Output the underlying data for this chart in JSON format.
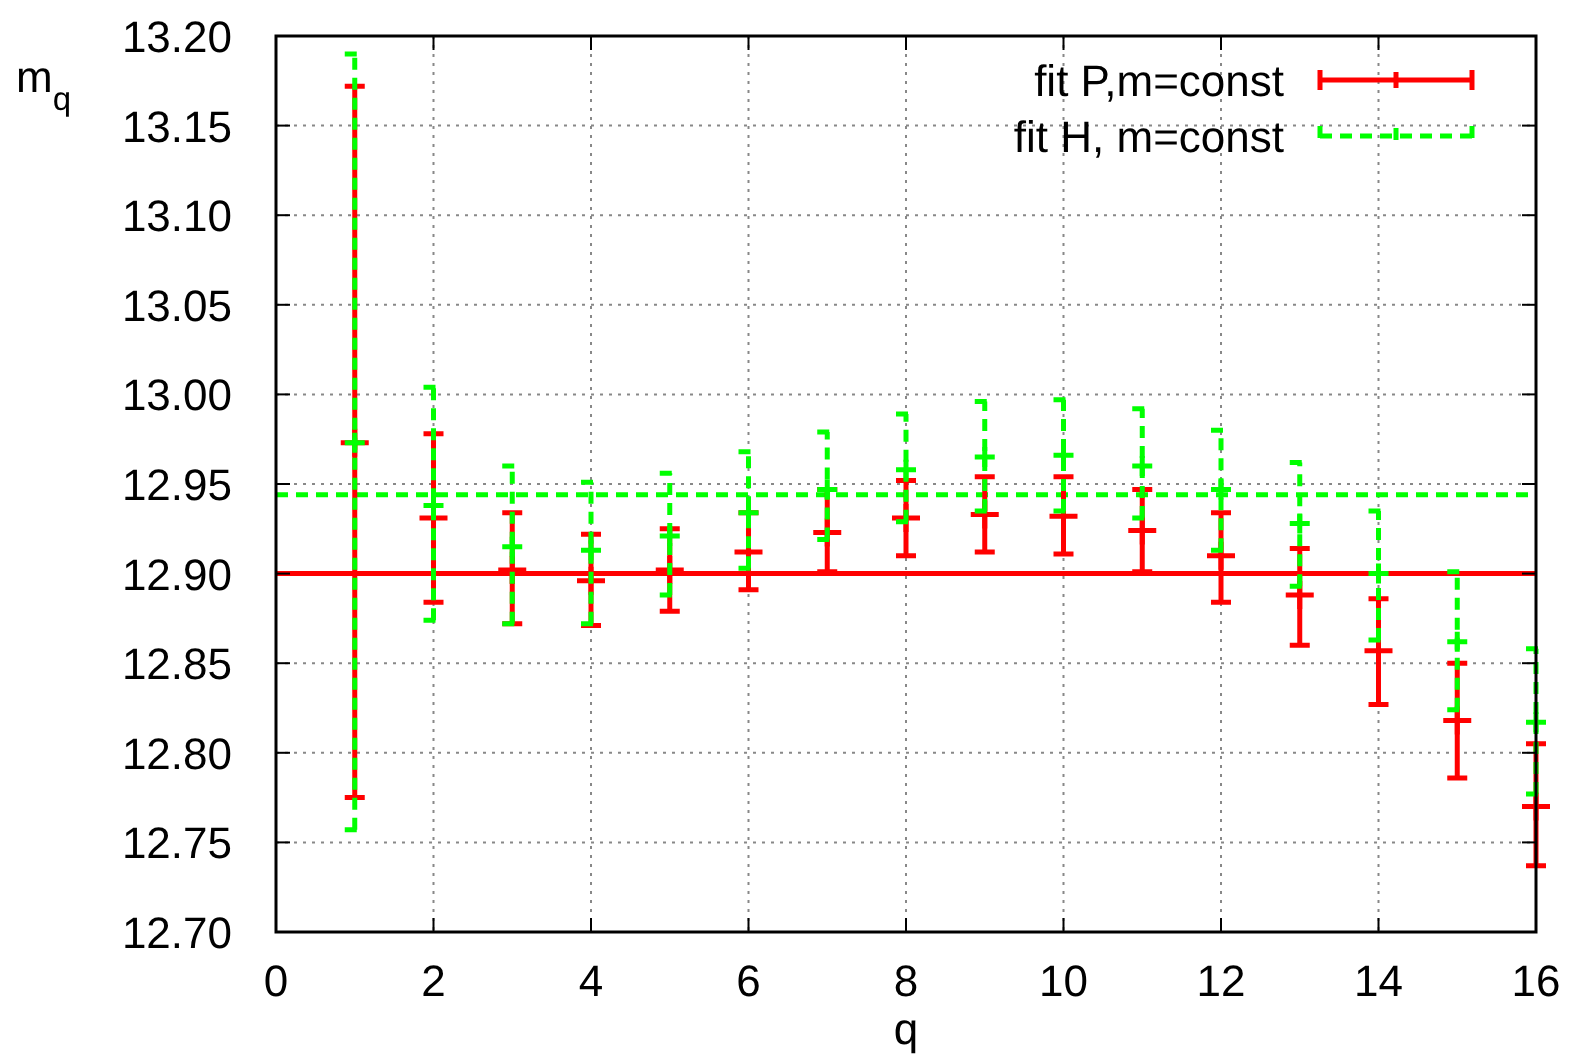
{
  "chart_data": {
    "type": "scatter",
    "xlabel": "q",
    "ylabel": "m$_{q}$",
    "x": [
      1,
      2,
      3,
      4,
      5,
      6,
      7,
      8,
      9,
      10,
      11,
      12,
      13,
      14,
      15,
      16
    ],
    "xlim": [
      0,
      16
    ],
    "xticks": [
      0,
      2,
      4,
      6,
      8,
      10,
      12,
      14,
      16
    ],
    "ylim": [
      12.7,
      13.2
    ],
    "yticks": [
      {
        "value": 12.7,
        "label": "12.70"
      },
      {
        "value": 12.75,
        "label": "12.75"
      },
      {
        "value": 12.8,
        "label": "12.80"
      },
      {
        "value": 12.85,
        "label": "12.85"
      },
      {
        "value": 12.9,
        "label": "12.90"
      },
      {
        "value": 12.95,
        "label": "12.95"
      },
      {
        "value": 13.0,
        "label": "13.00"
      },
      {
        "value": 13.05,
        "label": "13.05"
      },
      {
        "value": 13.1,
        "label": "13.10"
      },
      {
        "value": 13.15,
        "label": "13.15"
      },
      {
        "value": 13.2,
        "label": "13.20"
      }
    ],
    "grid": true,
    "legend": "top right",
    "marker": "cross",
    "series": [
      {
        "name": "fit P,m=const",
        "color": "#ff0000",
        "line_style": "solid",
        "values": [
          12.973,
          12.931,
          12.902,
          12.896,
          12.902,
          12.912,
          12.923,
          12.931,
          12.933,
          12.932,
          12.924,
          12.91,
          12.888,
          12.857,
          12.818,
          12.77
        ],
        "errors": [
          [
            12.775,
            13.172
          ],
          [
            12.884,
            12.978
          ],
          [
            12.872,
            12.934
          ],
          [
            12.871,
            12.922
          ],
          [
            12.879,
            12.925
          ],
          [
            12.891,
            12.934
          ],
          [
            12.901,
            12.947
          ],
          [
            12.91,
            12.952
          ],
          [
            12.912,
            12.954
          ],
          [
            12.911,
            12.954
          ],
          [
            12.901,
            12.947
          ],
          [
            12.884,
            12.934
          ],
          [
            12.86,
            12.914
          ],
          [
            12.827,
            12.886
          ],
          [
            12.786,
            12.85
          ],
          [
            12.737,
            12.805
          ]
        ]
      },
      {
        "name": "fit H, m=const",
        "color": "#00ff00",
        "line_style": "dashed",
        "values": [
          12.973,
          12.938,
          12.915,
          12.913,
          12.921,
          12.934,
          12.947,
          12.958,
          12.965,
          12.966,
          12.96,
          12.947,
          12.928,
          12.9,
          12.862,
          12.817
        ],
        "errors": [
          [
            12.757,
            13.19
          ],
          [
            12.874,
            13.004
          ],
          [
            12.872,
            12.96
          ],
          [
            12.872,
            12.951
          ],
          [
            12.888,
            12.956
          ],
          [
            12.903,
            12.968
          ],
          [
            12.919,
            12.979
          ],
          [
            12.929,
            12.989
          ],
          [
            12.935,
            12.996
          ],
          [
            12.935,
            12.997
          ],
          [
            12.931,
            12.992
          ],
          [
            12.913,
            12.98
          ],
          [
            12.893,
            12.962
          ],
          [
            12.863,
            12.935
          ],
          [
            12.824,
            12.901
          ],
          [
            12.777,
            12.858
          ]
        ]
      }
    ],
    "ref_lines": [
      {
        "axis": "y",
        "value": 12.9,
        "color": "#ff0000",
        "line_style": "solid"
      },
      {
        "axis": "y",
        "value": 12.944,
        "color": "#00ff00",
        "line_style": "dashed"
      }
    ]
  }
}
